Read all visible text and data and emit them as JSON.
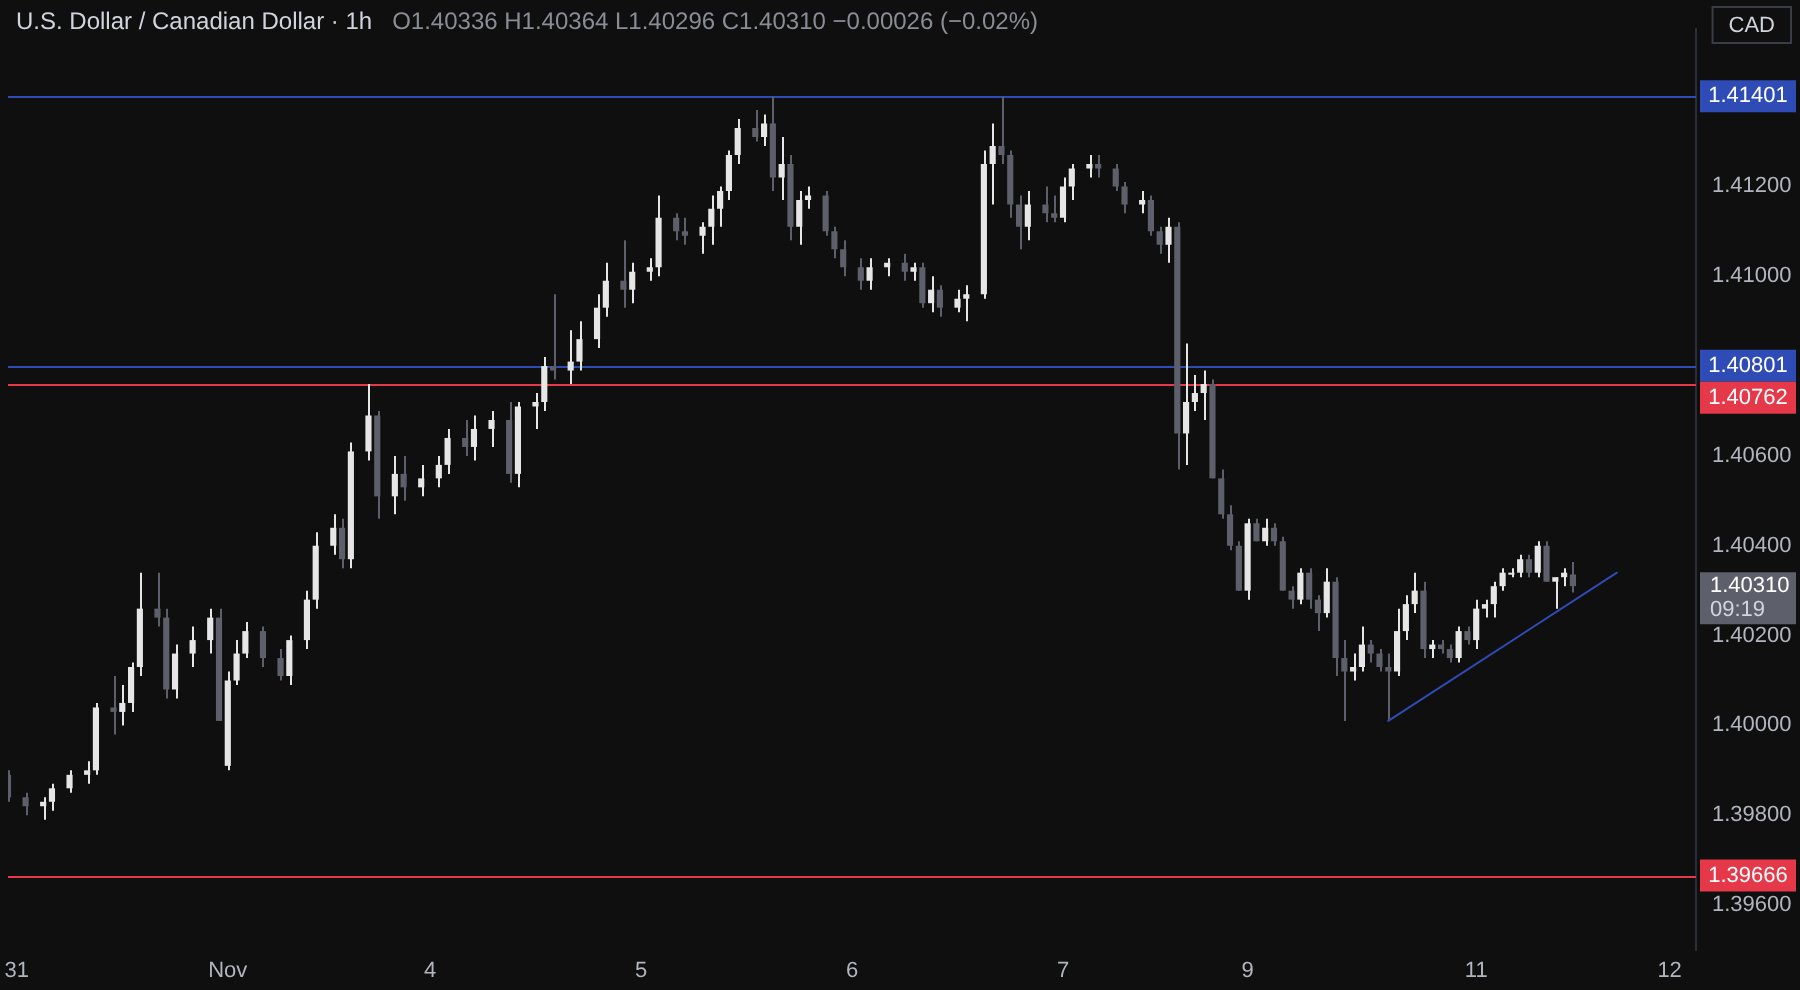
{
  "chart_data": {
    "type": "candlestick",
    "title": "U.S. Dollar / Canadian Dollar · 1h",
    "subtitle": "O1.40336 H1.40364 L1.40296 C1.40310 −0.00026 (−0.02%)",
    "categories": [
      null,
      "31",
      null,
      null,
      null,
      null,
      null,
      null,
      null,
      null,
      null,
      null,
      null,
      null,
      null,
      null,
      null,
      null,
      null,
      null,
      null,
      null,
      null,
      null,
      null,
      "Nov",
      null,
      null,
      null,
      null,
      null,
      null,
      null,
      null,
      null,
      null,
      null,
      null,
      null,
      null,
      null,
      null,
      null,
      null,
      null,
      null,
      null,
      null,
      "4",
      null,
      null,
      null,
      null,
      null,
      null,
      null,
      null,
      null,
      null,
      null,
      null,
      null,
      null,
      null,
      null,
      null,
      null,
      null,
      null,
      null,
      null,
      null,
      "5",
      null,
      null,
      null,
      null,
      null,
      null,
      null,
      null,
      null,
      null,
      null,
      null,
      null,
      null,
      null,
      null,
      null,
      null,
      null,
      null,
      null,
      null,
      null,
      "6",
      null,
      null,
      null,
      null,
      null,
      null,
      null,
      null,
      null,
      null,
      null,
      null,
      null,
      null,
      null,
      null,
      null,
      null,
      null,
      null,
      null,
      null,
      null,
      "7",
      null,
      null,
      null,
      null,
      null,
      null,
      null,
      null,
      null,
      null,
      null,
      null,
      null,
      null,
      null,
      null,
      null,
      null,
      null,
      null,
      "9",
      null,
      null,
      null,
      null,
      null,
      null,
      null,
      null,
      null,
      null,
      null,
      null,
      null,
      null,
      null,
      null,
      null,
      null,
      null,
      null,
      null,
      null,
      null,
      null,
      null,
      "11",
      null,
      null,
      null,
      null,
      null,
      null,
      null,
      null,
      null,
      null,
      null,
      null,
      null,
      null,
      null,
      null,
      null,
      null,
      null,
      null,
      null,
      "12",
      null,
      null,
      null
    ],
    "ohlc": [
      [
        1.3989,
        1.399,
        1.3983,
        1.3984
      ],
      null,
      [
        1.3984,
        1.3985,
        1.398,
        1.3982
      ],
      null,
      [
        1.3982,
        1.3984,
        1.3979,
        1.3983
      ],
      [
        1.3983,
        1.3987,
        1.3981,
        1.3986
      ],
      null,
      [
        1.3986,
        1.399,
        1.3985,
        1.3989
      ],
      null,
      [
        1.3989,
        1.3992,
        1.3987,
        1.399
      ],
      [
        1.399,
        1.4005,
        1.3989,
        1.4004
      ],
      null,
      [
        1.4004,
        1.4011,
        1.3998,
        1.4003
      ],
      [
        1.4003,
        1.4009,
        1.4,
        1.4005
      ],
      [
        1.4005,
        1.4014,
        1.4003,
        1.4013
      ],
      [
        1.4013,
        1.4034,
        1.4011,
        1.4026
      ],
      null,
      [
        1.4026,
        1.4034,
        1.4022,
        1.4024
      ],
      [
        1.4024,
        1.4026,
        1.4006,
        1.4008
      ],
      [
        1.4008,
        1.4018,
        1.4006,
        1.4016
      ],
      null,
      [
        1.4016,
        1.4022,
        1.4013,
        1.4019
      ],
      null,
      [
        1.4019,
        1.4026,
        1.4016,
        1.4024
      ],
      [
        1.4024,
        1.4026,
        1.4001,
        1.4001
      ],
      [
        1.3991,
        1.4012,
        1.399,
        1.401
      ],
      [
        1.401,
        1.4019,
        1.4009,
        1.4016
      ],
      [
        1.4016,
        1.4023,
        1.4015,
        1.4021
      ],
      null,
      [
        1.4021,
        1.4022,
        1.4013,
        1.4015
      ],
      null,
      [
        1.4015,
        1.4017,
        1.401,
        1.4011
      ],
      [
        1.4011,
        1.402,
        1.4009,
        1.4019
      ],
      null,
      [
        1.4019,
        1.403,
        1.4017,
        1.4028
      ],
      [
        1.4028,
        1.4043,
        1.4026,
        1.404
      ],
      null,
      [
        1.404,
        1.4047,
        1.4038,
        1.4044
      ],
      [
        1.4044,
        1.4046,
        1.4035,
        1.4037
      ],
      [
        1.4037,
        1.4063,
        1.4035,
        1.4061
      ],
      null,
      [
        1.4061,
        1.4076,
        1.4059,
        1.4069
      ],
      [
        1.4069,
        1.407,
        1.4046,
        1.4051
      ],
      null,
      [
        1.4051,
        1.406,
        1.4047,
        1.4056
      ],
      [
        1.4056,
        1.406,
        1.405,
        1.4053
      ],
      null,
      [
        1.4053,
        1.4058,
        1.4051,
        1.4055
      ],
      null,
      [
        1.4055,
        1.406,
        1.4053,
        1.4058
      ],
      [
        1.4058,
        1.4066,
        1.4056,
        1.4064
      ],
      null,
      [
        1.4064,
        1.4068,
        1.406,
        1.4062
      ],
      [
        1.4062,
        1.4069,
        1.4059,
        1.4066
      ],
      null,
      [
        1.4066,
        1.407,
        1.4062,
        1.4068
      ],
      null,
      [
        1.4068,
        1.4072,
        1.4054,
        1.4056
      ],
      [
        1.4056,
        1.4072,
        1.4053,
        1.4071
      ],
      null,
      [
        1.4071,
        1.4074,
        1.4066,
        1.4072
      ],
      [
        1.4072,
        1.4082,
        1.407,
        1.408
      ],
      [
        1.408,
        1.4096,
        1.4077,
        1.4079
      ],
      null,
      [
        1.4079,
        1.4088,
        1.4076,
        1.4081
      ],
      [
        1.4081,
        1.409,
        1.4079,
        1.4086
      ],
      null,
      [
        1.4086,
        1.4096,
        1.4084,
        1.4093
      ],
      [
        1.4093,
        1.4103,
        1.4091,
        1.4099
      ],
      null,
      [
        1.4099,
        1.4108,
        1.4093,
        1.4097
      ],
      [
        1.4097,
        1.4103,
        1.4094,
        1.4101
      ],
      null,
      [
        1.4101,
        1.4104,
        1.4099,
        1.4102
      ],
      [
        1.4102,
        1.4118,
        1.41,
        1.4113
      ],
      null,
      [
        1.4113,
        1.4114,
        1.4108,
        1.411
      ],
      [
        1.411,
        1.4113,
        1.4107,
        1.4109
      ],
      null,
      [
        1.4109,
        1.4112,
        1.4105,
        1.4111
      ],
      [
        1.4111,
        1.4118,
        1.4107,
        1.4115
      ],
      [
        1.4115,
        1.412,
        1.4111,
        1.4119
      ],
      [
        1.4119,
        1.4128,
        1.4117,
        1.4127
      ],
      [
        1.4127,
        1.4135,
        1.4125,
        1.4133
      ],
      null,
      [
        1.4133,
        1.4137,
        1.413,
        1.4131
      ],
      [
        1.4131,
        1.4136,
        1.4129,
        1.4134
      ],
      [
        1.4134,
        1.414,
        1.4119,
        1.4122
      ],
      [
        1.4122,
        1.4131,
        1.4117,
        1.4125
      ],
      [
        1.4125,
        1.4127,
        1.4108,
        1.4111
      ],
      [
        1.4111,
        1.4119,
        1.4107,
        1.4117
      ],
      [
        1.4117,
        1.412,
        1.4115,
        1.4118
      ],
      null,
      [
        1.4118,
        1.4119,
        1.4109,
        1.411
      ],
      [
        1.411,
        1.4111,
        1.4104,
        1.4106
      ],
      [
        1.4106,
        1.4108,
        1.41,
        1.4102
      ],
      null,
      [
        1.4102,
        1.4104,
        1.4097,
        1.4099
      ],
      [
        1.4099,
        1.4104,
        1.4097,
        1.4102
      ],
      null,
      [
        1.4102,
        1.4104,
        1.41,
        1.4103
      ],
      null,
      [
        1.4103,
        1.4105,
        1.4099,
        1.4101
      ],
      [
        1.4101,
        1.4103,
        1.4099,
        1.4102
      ],
      [
        1.4102,
        1.4103,
        1.4093,
        1.4094
      ],
      [
        1.4094,
        1.41,
        1.4092,
        1.4097
      ],
      [
        1.4097,
        1.4098,
        1.4091,
        1.4093
      ],
      null,
      [
        1.4093,
        1.4097,
        1.4092,
        1.4095
      ],
      [
        1.4095,
        1.4098,
        1.409,
        1.4096
      ],
      null,
      [
        1.4096,
        1.4128,
        1.4095,
        1.4125
      ],
      [
        1.4125,
        1.4134,
        1.4116,
        1.4129
      ],
      [
        1.4129,
        1.414,
        1.4125,
        1.4127
      ],
      [
        1.4127,
        1.4128,
        1.4113,
        1.4116
      ],
      [
        1.4116,
        1.4118,
        1.4106,
        1.4111
      ],
      [
        1.4111,
        1.4119,
        1.4108,
        1.4116
      ],
      null,
      [
        1.4116,
        1.412,
        1.4112,
        1.4114
      ],
      [
        1.4114,
        1.4118,
        1.4112,
        1.4113
      ],
      [
        1.4113,
        1.4122,
        1.4112,
        1.412
      ],
      [
        1.412,
        1.4125,
        1.4117,
        1.4124
      ],
      null,
      [
        1.4124,
        1.4127,
        1.4122,
        1.4125
      ],
      [
        1.4125,
        1.4127,
        1.4122,
        1.4124
      ],
      null,
      [
        1.4124,
        1.4125,
        1.4119,
        1.412
      ],
      [
        1.412,
        1.4121,
        1.4114,
        1.4116
      ],
      null,
      [
        1.4116,
        1.4119,
        1.4114,
        1.4117
      ],
      [
        1.4117,
        1.4118,
        1.4109,
        1.411
      ],
      [
        1.411,
        1.4111,
        1.4105,
        1.4107
      ],
      [
        1.4107,
        1.4113,
        1.4103,
        1.4111
      ],
      [
        1.4111,
        1.4112,
        1.4057,
        1.4065
      ],
      [
        1.4065,
        1.4085,
        1.4058,
        1.4072
      ],
      [
        1.4072,
        1.4078,
        1.407,
        1.4074
      ],
      [
        1.4074,
        1.4079,
        1.4068,
        1.4076
      ],
      [
        1.4076,
        1.4077,
        1.4055,
        1.4055
      ],
      [
        1.4055,
        1.4057,
        1.4046,
        1.4047
      ],
      [
        1.4047,
        1.4049,
        1.4039,
        1.404
      ],
      [
        1.404,
        1.4041,
        1.403,
        1.403
      ],
      [
        1.403,
        1.4046,
        1.4028,
        1.4045
      ],
      [
        1.4045,
        1.4046,
        1.4041,
        1.4041
      ],
      [
        1.4041,
        1.4046,
        1.404,
        1.4044
      ],
      [
        1.4044,
        1.4045,
        1.404,
        1.4041
      ],
      [
        1.4041,
        1.4042,
        1.403,
        1.403
      ],
      [
        1.403,
        1.4031,
        1.4026,
        1.4028
      ],
      [
        1.4028,
        1.4035,
        1.4027,
        1.4034
      ],
      [
        1.4034,
        1.4035,
        1.4026,
        1.4028
      ],
      [
        1.4028,
        1.4029,
        1.4021,
        1.4025
      ],
      [
        1.4025,
        1.4035,
        1.4024,
        1.4032
      ],
      [
        1.4032,
        1.4033,
        1.4011,
        1.4015
      ],
      [
        1.4015,
        1.4019,
        1.4001,
        1.4012
      ],
      [
        1.4012,
        1.4016,
        1.401,
        1.4013
      ],
      [
        1.4013,
        1.4022,
        1.4012,
        1.4018
      ],
      [
        1.4018,
        1.4019,
        1.4014,
        1.4016
      ],
      [
        1.4016,
        1.4017,
        1.4012,
        1.4013
      ],
      [
        1.4013,
        1.4016,
        1.4001,
        1.4012
      ],
      [
        1.4012,
        1.4026,
        1.4011,
        1.4021
      ],
      [
        1.4021,
        1.4029,
        1.4019,
        1.4027
      ],
      [
        1.4027,
        1.4034,
        1.4025,
        1.403
      ],
      [
        1.403,
        1.4032,
        1.4015,
        1.4017
      ],
      [
        1.4017,
        1.4019,
        1.4015,
        1.4018
      ],
      [
        1.4018,
        1.4019,
        1.4016,
        1.4017
      ],
      [
        1.4017,
        1.4018,
        1.4014,
        1.4015
      ],
      [
        1.4015,
        1.4022,
        1.4014,
        1.4021
      ],
      [
        1.4021,
        1.4022,
        1.4018,
        1.4019
      ],
      [
        1.4019,
        1.4028,
        1.4017,
        1.4026
      ],
      [
        1.4026,
        1.4028,
        1.4024,
        1.4027
      ],
      [
        1.4027,
        1.4032,
        1.4024,
        1.4031
      ],
      [
        1.4031,
        1.4035,
        1.403,
        1.4034
      ],
      [
        1.4034,
        1.4035,
        1.4033,
        1.4034
      ],
      [
        1.4034,
        1.4038,
        1.4033,
        1.4037
      ],
      [
        1.4037,
        1.4038,
        1.4033,
        1.4034
      ],
      [
        1.4034,
        1.4041,
        1.4033,
        1.404
      ],
      [
        1.404,
        1.4041,
        1.4032,
        1.4032
      ],
      [
        1.4032,
        1.4033,
        1.4026,
        1.4033
      ],
      [
        1.4033,
        1.4035,
        1.4031,
        1.4034
      ],
      [
        1.40336,
        1.40364,
        1.40296,
        1.4031
      ],
      null,
      null,
      null,
      null,
      null,
      null,
      null,
      null,
      null,
      null,
      null,
      null,
      null,
      null
    ],
    "series": [
      {
        "type": "line",
        "color": "#2f4bb5",
        "values": [
          null,
          null,
          null,
          null,
          null,
          null,
          null,
          null,
          null,
          null,
          null,
          null,
          null,
          null,
          null,
          null,
          null,
          null,
          null,
          null,
          null,
          null,
          null,
          null,
          null,
          null,
          null,
          null,
          null,
          null,
          null,
          null,
          null,
          null,
          null,
          null,
          null,
          null,
          null,
          null,
          null,
          null,
          null,
          null,
          null,
          null,
          null,
          null,
          null,
          null,
          null,
          null,
          null,
          null,
          null,
          null,
          null,
          null,
          null,
          null,
          null,
          null,
          null,
          null,
          null,
          null,
          null,
          null,
          null,
          null,
          null,
          null,
          null,
          null,
          null,
          null,
          null,
          null,
          null,
          null,
          null,
          null,
          null,
          null,
          null,
          null,
          null,
          null,
          null,
          null,
          null,
          null,
          null,
          null,
          null,
          null,
          null,
          null,
          null,
          null,
          null,
          null,
          null,
          null,
          null,
          null,
          null,
          null,
          null,
          null,
          null,
          null,
          null,
          null,
          null,
          null,
          null,
          null,
          null,
          null,
          null,
          null,
          null,
          null,
          null,
          null,
          null,
          null,
          null,
          null,
          null,
          null,
          null,
          null,
          null,
          null,
          null,
          null,
          null,
          null,
          null,
          null,
          null,
          null,
          null,
          null,
          null,
          null,
          null,
          null,
          null,
          null,
          null,
          null,
          null,
          null,
          null,
          1.4001,
          null,
          null,
          null,
          null,
          null,
          null,
          null,
          null,
          null,
          null,
          null,
          null,
          null,
          null,
          null,
          null,
          null,
          null,
          null,
          null,
          null,
          null,
          null,
          null,
          null,
          1.4034,
          null,
          null,
          null,
          null,
          null,
          null,
          null,
          null,
          null
        ]
      }
    ],
    "ylim": [
      1.395,
      1.4155
    ],
    "yticks": [
      {
        "value": 1.396,
        "label": "1.39600"
      },
      {
        "value": 1.398,
        "label": "1.39800"
      },
      {
        "value": 1.4,
        "label": "1.40000"
      },
      {
        "value": 1.402,
        "label": "1.40200"
      },
      {
        "value": 1.404,
        "label": "1.40400"
      },
      {
        "value": 1.406,
        "label": "1.40600"
      },
      {
        "value": 1.41,
        "label": "1.41000"
      },
      {
        "value": 1.412,
        "label": "1.41200"
      }
    ],
    "ref_lines": [
      {
        "axis": "y",
        "value": 1.41401,
        "label": "1.41401",
        "color": "#2f4bb5"
      },
      {
        "axis": "y",
        "value": 1.40801,
        "label": "1.40801",
        "color": "#2f4bb5"
      },
      {
        "axis": "y",
        "value": 1.40762,
        "label": "1.40762",
        "color": "#e5394a"
      },
      {
        "axis": "y",
        "value": 1.39666,
        "label": "1.39666",
        "color": "#e5394a"
      }
    ],
    "annotations": [
      "CAD",
      "1.40310",
      "09:19"
    ]
  }
}
